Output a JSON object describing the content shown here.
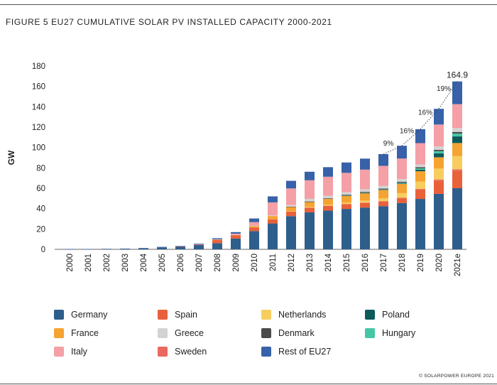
{
  "figure_title": "FIGURE 5 EU27 CUMULATIVE SOLAR PV INSTALLED CAPACITY 2000-2021",
  "credit": "© SOLARPOWER EUROPE 2021",
  "chart_data": {
    "type": "bar",
    "stacked": true,
    "title": "FIGURE 5 EU27 CUMULATIVE SOLAR PV INSTALLED CAPACITY 2000-2021",
    "xlabel": "",
    "ylabel": "GW",
    "ylim": [
      0,
      180
    ],
    "yticks": [
      0,
      20,
      40,
      60,
      80,
      100,
      120,
      140,
      160,
      180
    ],
    "grid": false,
    "legend_position": "bottom",
    "categories": [
      "2000",
      "2001",
      "2002",
      "2003",
      "2004",
      "2005",
      "2006",
      "2007",
      "2008",
      "2009",
      "2010",
      "2011",
      "2012",
      "2013",
      "2014",
      "2015",
      "2016",
      "2017",
      "2018",
      "2019",
      "2020",
      "2021e"
    ],
    "series": [
      {
        "name": "Germany",
        "color": "#2e5e8c",
        "values": [
          0.1,
          0.2,
          0.3,
          0.4,
          1.0,
          2.0,
          2.8,
          4.2,
          6.0,
          10.5,
          17.9,
          25.4,
          32.6,
          36.3,
          38.0,
          39.7,
          41.0,
          42.4,
          45.5,
          49.5,
          54.5,
          60.0
        ]
      },
      {
        "name": "Spain",
        "color": "#e8613b",
        "values": [
          0,
          0,
          0,
          0,
          0,
          0,
          0.1,
          0.6,
          3.4,
          3.4,
          3.8,
          4.3,
          4.6,
          4.7,
          4.7,
          4.7,
          4.7,
          4.7,
          4.7,
          9.2,
          13.0,
          17.0
        ]
      },
      {
        "name": "Netherlands",
        "color": "#f7cd5e",
        "values": [
          0,
          0,
          0,
          0,
          0,
          0,
          0,
          0,
          0,
          0,
          0.1,
          0.1,
          0.3,
          0.7,
          1.1,
          1.5,
          2.1,
          2.9,
          4.6,
          7.2,
          10.7,
          13.0
        ]
      },
      {
        "name": "Poland",
        "color": "#0e5a5b",
        "values": [
          0,
          0,
          0,
          0,
          0,
          0,
          0,
          0,
          0,
          0,
          0,
          0,
          0,
          0,
          0,
          0.1,
          0.2,
          0.3,
          0.5,
          1.5,
          3.9,
          6.5
        ]
      },
      {
        "name": "France",
        "color": "#f5a331",
        "values": [
          0,
          0,
          0,
          0,
          0,
          0,
          0,
          0,
          0.1,
          0.3,
          1.2,
          2.9,
          4.0,
          4.7,
          5.6,
          6.6,
          7.2,
          8.0,
          9.0,
          10.1,
          11.1,
          12.8
        ]
      },
      {
        "name": "Greece",
        "color": "#d3d3d3",
        "values": [
          0,
          0,
          0,
          0,
          0,
          0,
          0,
          0,
          0,
          0.1,
          0.2,
          0.6,
          1.5,
          2.6,
          2.6,
          2.6,
          2.6,
          2.6,
          2.7,
          2.8,
          3.3,
          3.8
        ]
      },
      {
        "name": "Denmark",
        "color": "#4a4a4a",
        "values": [
          0,
          0,
          0,
          0,
          0,
          0,
          0,
          0,
          0,
          0,
          0,
          0,
          0.4,
          0.6,
          0.6,
          0.8,
          0.9,
          0.9,
          1.0,
          1.1,
          1.3,
          1.6
        ]
      },
      {
        "name": "Hungary",
        "color": "#45c7a6",
        "values": [
          0,
          0,
          0,
          0,
          0,
          0,
          0,
          0,
          0,
          0,
          0,
          0,
          0,
          0,
          0,
          0.1,
          0.2,
          0.3,
          0.7,
          1.3,
          2.1,
          2.8
        ]
      },
      {
        "name": "Italy",
        "color": "#f4a0a6",
        "values": [
          0,
          0,
          0,
          0,
          0,
          0,
          0,
          0.1,
          0.4,
          1.1,
          3.5,
          12.8,
          16.4,
          18.2,
          18.6,
          18.9,
          19.3,
          19.7,
          20.1,
          20.9,
          21.6,
          23.5
        ]
      },
      {
        "name": "Sweden",
        "color": "#e9695e",
        "values": [
          0,
          0,
          0,
          0,
          0,
          0,
          0,
          0,
          0,
          0,
          0,
          0,
          0,
          0,
          0.1,
          0.1,
          0.1,
          0.2,
          0.4,
          0.7,
          1.1,
          1.6
        ]
      },
      {
        "name": "Rest of EU27",
        "color": "#3761a8",
        "values": [
          0.1,
          0.1,
          0.2,
          0.3,
          0.3,
          0.4,
          0.4,
          0.6,
          1.0,
          1.5,
          3.6,
          5.9,
          7.5,
          8.4,
          9.4,
          10.2,
          10.8,
          11.5,
          12.5,
          13.7,
          15.4,
          22.3
        ]
      }
    ],
    "stack_order": [
      "Germany",
      "Spain",
      "Sweden",
      "Netherlands",
      "France",
      "Poland",
      "Hungary",
      "Denmark",
      "Greece",
      "Italy",
      "Rest of EU27"
    ],
    "total_labels": [
      {
        "category": "2021e",
        "value": "164.9"
      }
    ],
    "growth_annotations": [
      {
        "from": "2017",
        "to": "2018",
        "label": "9%"
      },
      {
        "from": "2018",
        "to": "2019",
        "label": "16%"
      },
      {
        "from": "2019",
        "to": "2020",
        "label": "16%"
      },
      {
        "from": "2020",
        "to": "2021e",
        "label": "19%"
      }
    ]
  },
  "legend": {
    "items": [
      {
        "label": "Germany",
        "color": "#2e5e8c"
      },
      {
        "label": "Spain",
        "color": "#e8613b"
      },
      {
        "label": "Netherlands",
        "color": "#f7cd5e"
      },
      {
        "label": "Poland",
        "color": "#0e5a5b"
      },
      {
        "label": "France",
        "color": "#f5a331"
      },
      {
        "label": "Greece",
        "color": "#d3d3d3"
      },
      {
        "label": "Denmark",
        "color": "#4a4a4a"
      },
      {
        "label": "Hungary",
        "color": "#45c7a6"
      },
      {
        "label": "Italy",
        "color": "#f4a0a6"
      },
      {
        "label": "Sweden",
        "color": "#e9695e"
      },
      {
        "label": "Rest of EU27",
        "color": "#3761a8"
      }
    ]
  }
}
